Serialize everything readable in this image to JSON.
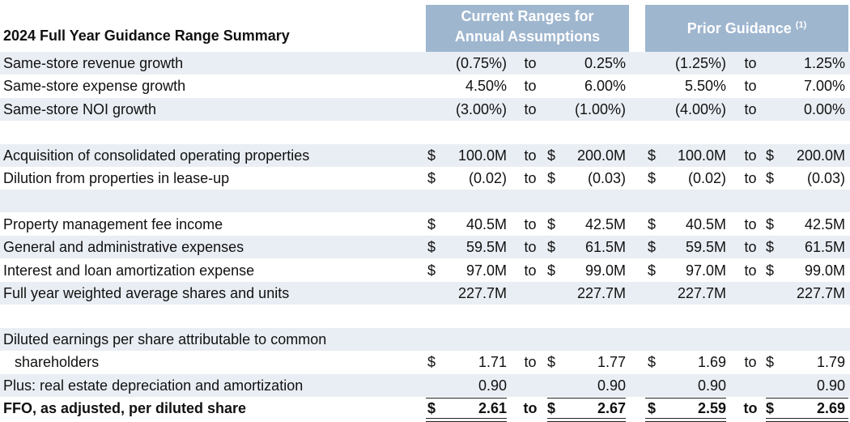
{
  "header": {
    "title": "2024 Full Year Guidance Range Summary",
    "current_line1": "Current Ranges for",
    "current_line2": "Annual Assumptions",
    "prior_label": "Prior Guidance",
    "prior_footnote": "(1)"
  },
  "rows": [
    {
      "label": "Same-store revenue growth",
      "shaded": true,
      "c1": "(0.75%)",
      "t1": "to",
      "c2": "0.25%",
      "p1": "(1.25%)",
      "t2": "to",
      "p2": "1.25%"
    },
    {
      "label": "Same-store expense growth",
      "shaded": false,
      "c1": "4.50%",
      "t1": "to",
      "c2": "6.00%",
      "p1": "5.50%",
      "t2": "to",
      "p2": "7.00%"
    },
    {
      "label": "Same-store NOI growth",
      "shaded": true,
      "c1": "(3.00%)",
      "t1": "to",
      "c2": "(1.00%)",
      "p1": "(4.00%)",
      "t2": "to",
      "p2": "0.00%"
    },
    {
      "label": "",
      "shaded": false
    },
    {
      "label": "Acquisition of consolidated operating properties",
      "shaded": true,
      "d1": "$",
      "c1": "100.0M",
      "t1": "to",
      "d2": "$",
      "c2": "200.0M",
      "d3": "$",
      "p1": "100.0M",
      "t2": "to",
      "d4": "$",
      "p2": "200.0M"
    },
    {
      "label": "Dilution from properties in lease-up",
      "shaded": false,
      "d1": "$",
      "c1": "(0.02)",
      "t1": "to",
      "d2": "$",
      "c2": "(0.03)",
      "d3": "$",
      "p1": "(0.02)",
      "t2": "to",
      "d4": "$",
      "p2": "(0.03)"
    },
    {
      "label": "",
      "shaded": true
    },
    {
      "label": "Property management fee income",
      "shaded": false,
      "d1": "$",
      "c1": "40.5M",
      "t1": "to",
      "d2": "$",
      "c2": "42.5M",
      "d3": "$",
      "p1": "40.5M",
      "t2": "to",
      "d4": "$",
      "p2": "42.5M"
    },
    {
      "label": "General and administrative expenses",
      "shaded": true,
      "d1": "$",
      "c1": "59.5M",
      "t1": "to",
      "d2": "$",
      "c2": "61.5M",
      "d3": "$",
      "p1": "59.5M",
      "t2": "to",
      "d4": "$",
      "p2": "61.5M"
    },
    {
      "label": "Interest and loan amortization expense",
      "shaded": false,
      "d1": "$",
      "c1": "97.0M",
      "t1": "to",
      "d2": "$",
      "c2": "99.0M",
      "d3": "$",
      "p1": "97.0M",
      "t2": "to",
      "d4": "$",
      "p2": "99.0M"
    },
    {
      "label": "Full year weighted average shares and units",
      "shaded": true,
      "c1": "227.7M",
      "c2": "227.7M",
      "p1": "227.7M",
      "p2": "227.7M"
    },
    {
      "label": "",
      "shaded": false
    },
    {
      "label": "Diluted earnings per share attributable to common",
      "shaded": true
    },
    {
      "label": "  shareholders",
      "shaded": false,
      "d1": "$",
      "c1": "1.71",
      "t1": "to",
      "d2": "$",
      "c2": "1.77",
      "d3": "$",
      "p1": "1.69",
      "t2": "to",
      "d4": "$",
      "p2": "1.79"
    },
    {
      "label": "Plus: real estate depreciation and amortization",
      "shaded": true,
      "c1": "0.90",
      "c2": "0.90",
      "p1": "0.90",
      "p2": "0.90"
    },
    {
      "label": "FFO, as adjusted, per diluted share",
      "shaded": false,
      "bold": true,
      "d1": "$",
      "c1": "2.61",
      "t1": "to",
      "d2": "$",
      "c2": "2.67",
      "d3": "$",
      "p1": "2.59",
      "t2": "to",
      "d4": "$",
      "p2": "2.69"
    }
  ]
}
